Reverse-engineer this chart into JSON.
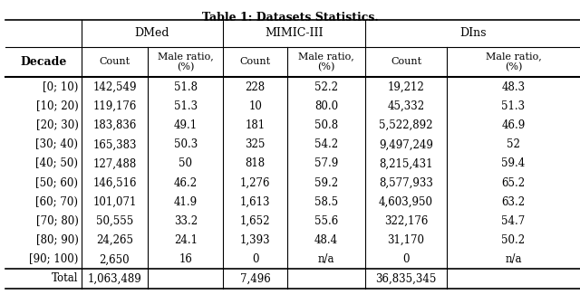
{
  "title": "Table 1: Datasets Statistics.",
  "col_groups": [
    "DMed",
    "MIMIC-III",
    "DIns"
  ],
  "col_headers": [
    "Count",
    "Male ratio,\n(%)",
    "Count",
    "Male ratio,\n(%)",
    "Count",
    "Male ratio,\n(%)"
  ],
  "row_header": "Decade",
  "decades": [
    "[0; 10)",
    "[10; 20)",
    "[20; 30)",
    "[30; 40)",
    "[40; 50)",
    "[50; 60)",
    "[60; 70)",
    "[70; 80)",
    "[80; 90)",
    "[90; 100)"
  ],
  "data": [
    [
      "142,549",
      "51.8",
      "228",
      "52.2",
      "19,212",
      "48.3"
    ],
    [
      "119,176",
      "51.3",
      "10",
      "80.0",
      "45,332",
      "51.3"
    ],
    [
      "183,836",
      "49.1",
      "181",
      "50.8",
      "5,522,892",
      "46.9"
    ],
    [
      "165,383",
      "50.3",
      "325",
      "54.2",
      "9,497,249",
      "52"
    ],
    [
      "127,488",
      "50",
      "818",
      "57.9",
      "8,215,431",
      "59.4"
    ],
    [
      "146,516",
      "46.2",
      "1,276",
      "59.2",
      "8,577,933",
      "65.2"
    ],
    [
      "101,071",
      "41.9",
      "1,613",
      "58.5",
      "4,603,950",
      "63.2"
    ],
    [
      "50,555",
      "33.2",
      "1,652",
      "55.6",
      "322,176",
      "54.7"
    ],
    [
      "24,265",
      "24.1",
      "1,393",
      "48.4",
      "31,170",
      "50.2"
    ],
    [
      "2,650",
      "16",
      "0",
      "n/a",
      "0",
      "n/a"
    ]
  ],
  "totals": [
    "1,063,489",
    "",
    "7,496",
    "",
    "36,835,345",
    ""
  ],
  "bg_color": "#ffffff",
  "header_bg": "#ffffff",
  "text_color": "#000000",
  "line_color": "#000000",
  "font_size": 8.5
}
